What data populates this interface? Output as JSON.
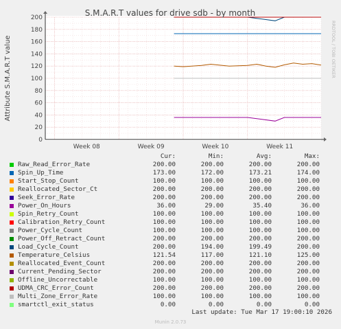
{
  "chart_data": {
    "type": "line",
    "title": "S.M.A.R.T values for drive sdb - by month",
    "ylabel": "Attribute S.M.A.R.T value",
    "side_label": "RRDTOOL / TOBI OETIKER",
    "ylim": [
      0,
      200
    ],
    "yticks": [
      0,
      20,
      40,
      60,
      80,
      100,
      120,
      140,
      160,
      180,
      200
    ],
    "x_range": [
      "2026-02-15",
      "2026-03-17"
    ],
    "x_ticks": [
      {
        "label": "Week 08",
        "date": "2026-02-16"
      },
      {
        "label": "Week 09",
        "date": "2026-02-23"
      },
      {
        "label": "Week 10",
        "date": "2026-03-02"
      },
      {
        "label": "Week 11",
        "date": "2026-03-09"
      }
    ],
    "series": [
      {
        "name": "Raw_Read_Error_Rate",
        "color": "#00cc00",
        "cur": "200.00",
        "min": "200.00",
        "avg": "200.00",
        "max": "200.00",
        "points": [
          [
            "2026-03-01",
            200
          ],
          [
            "2026-03-04",
            200
          ],
          [
            "2026-03-09",
            200
          ],
          [
            "2026-03-17",
            200
          ]
        ]
      },
      {
        "name": "Spin_Up_Time",
        "color": "#0066b3",
        "cur": "173.00",
        "min": "172.00",
        "avg": "173.21",
        "max": "174.00",
        "points": [
          [
            "2026-03-01",
            173
          ],
          [
            "2026-03-04",
            173
          ],
          [
            "2026-03-09",
            173
          ],
          [
            "2026-03-17",
            173
          ]
        ]
      },
      {
        "name": "Start_Stop_Count",
        "color": "#ff8000",
        "cur": "100.00",
        "min": "100.00",
        "avg": "100.00",
        "max": "100.00",
        "points": [
          [
            "2026-03-01",
            100
          ],
          [
            "2026-03-04",
            100
          ],
          [
            "2026-03-09",
            100
          ],
          [
            "2026-03-17",
            100
          ]
        ]
      },
      {
        "name": "Reallocated_Sector_Ct",
        "color": "#ffcc00",
        "cur": "200.00",
        "min": "200.00",
        "avg": "200.00",
        "max": "200.00",
        "points": [
          [
            "2026-03-01",
            200
          ],
          [
            "2026-03-04",
            200
          ],
          [
            "2026-03-09",
            200
          ],
          [
            "2026-03-17",
            200
          ]
        ]
      },
      {
        "name": "Seek_Error_Rate",
        "color": "#330099",
        "cur": "200.00",
        "min": "200.00",
        "avg": "200.00",
        "max": "200.00",
        "points": [
          [
            "2026-03-01",
            200
          ],
          [
            "2026-03-04",
            200
          ],
          [
            "2026-03-09",
            200
          ],
          [
            "2026-03-17",
            200
          ]
        ]
      },
      {
        "name": "Power_On_Hours",
        "color": "#990099",
        "cur": "36.00",
        "min": "29.00",
        "avg": "35.40",
        "max": "36.00",
        "points": [
          [
            "2026-03-01",
            36
          ],
          [
            "2026-03-04",
            36
          ],
          [
            "2026-03-09",
            36
          ],
          [
            "2026-03-12",
            30
          ],
          [
            "2026-03-13",
            36
          ],
          [
            "2026-03-17",
            36
          ]
        ]
      },
      {
        "name": "Spin_Retry_Count",
        "color": "#ccff00",
        "cur": "100.00",
        "min": "100.00",
        "avg": "100.00",
        "max": "100.00",
        "points": [
          [
            "2026-03-01",
            100
          ],
          [
            "2026-03-04",
            100
          ],
          [
            "2026-03-09",
            100
          ],
          [
            "2026-03-17",
            100
          ]
        ]
      },
      {
        "name": "Calibration_Retry_Count",
        "color": "#ff0000",
        "cur": "100.00",
        "min": "100.00",
        "avg": "100.00",
        "max": "100.00",
        "points": [
          [
            "2026-03-01",
            100
          ],
          [
            "2026-03-04",
            100
          ],
          [
            "2026-03-09",
            100
          ],
          [
            "2026-03-17",
            100
          ]
        ]
      },
      {
        "name": "Power_Cycle_Count",
        "color": "#808080",
        "cur": "100.00",
        "min": "100.00",
        "avg": "100.00",
        "max": "100.00",
        "points": [
          [
            "2026-03-01",
            100
          ],
          [
            "2026-03-04",
            100
          ],
          [
            "2026-03-09",
            100
          ],
          [
            "2026-03-17",
            100
          ]
        ]
      },
      {
        "name": "Power_Off_Retract_Count",
        "color": "#008f00",
        "cur": "200.00",
        "min": "200.00",
        "avg": "200.00",
        "max": "200.00",
        "points": [
          [
            "2026-03-01",
            200
          ],
          [
            "2026-03-04",
            200
          ],
          [
            "2026-03-09",
            200
          ],
          [
            "2026-03-17",
            200
          ]
        ]
      },
      {
        "name": "Load_Cycle_Count",
        "color": "#00487d",
        "cur": "200.00",
        "min": "194.00",
        "avg": "199.49",
        "max": "200.00",
        "points": [
          [
            "2026-03-01",
            200
          ],
          [
            "2026-03-04",
            200
          ],
          [
            "2026-03-09",
            200
          ],
          [
            "2026-03-12",
            194
          ],
          [
            "2026-03-13",
            200
          ],
          [
            "2026-03-17",
            200
          ]
        ]
      },
      {
        "name": "Temperature_Celsius",
        "color": "#b35a00",
        "cur": "121.54",
        "min": "117.00",
        "avg": "121.10",
        "max": "125.00",
        "points": [
          [
            "2026-03-01",
            120
          ],
          [
            "2026-03-02",
            119
          ],
          [
            "2026-03-04",
            121
          ],
          [
            "2026-03-05",
            123
          ],
          [
            "2026-03-07",
            120
          ],
          [
            "2026-03-09",
            121
          ],
          [
            "2026-03-10",
            123
          ],
          [
            "2026-03-11",
            120
          ],
          [
            "2026-03-12",
            118
          ],
          [
            "2026-03-13",
            122
          ],
          [
            "2026-03-14",
            125
          ],
          [
            "2026-03-15",
            123
          ],
          [
            "2026-03-16",
            124
          ],
          [
            "2026-03-17",
            121.54
          ]
        ]
      },
      {
        "name": "Reallocated_Event_Count",
        "color": "#b38f00",
        "cur": "200.00",
        "min": "200.00",
        "avg": "200.00",
        "max": "200.00",
        "points": [
          [
            "2026-03-01",
            200
          ],
          [
            "2026-03-04",
            200
          ],
          [
            "2026-03-09",
            200
          ],
          [
            "2026-03-17",
            200
          ]
        ]
      },
      {
        "name": "Current_Pending_Sector",
        "color": "#6b006b",
        "cur": "200.00",
        "min": "200.00",
        "avg": "200.00",
        "max": "200.00",
        "points": [
          [
            "2026-03-01",
            200
          ],
          [
            "2026-03-04",
            200
          ],
          [
            "2026-03-09",
            200
          ],
          [
            "2026-03-17",
            200
          ]
        ]
      },
      {
        "name": "Offline_Uncorrectable",
        "color": "#8fb300",
        "cur": "100.00",
        "min": "100.00",
        "avg": "100.00",
        "max": "100.00",
        "points": [
          [
            "2026-03-01",
            100
          ],
          [
            "2026-03-04",
            100
          ],
          [
            "2026-03-09",
            100
          ],
          [
            "2026-03-17",
            100
          ]
        ]
      },
      {
        "name": "UDMA_CRC_Error_Count",
        "color": "#b30000",
        "cur": "200.00",
        "min": "200.00",
        "avg": "200.00",
        "max": "200.00",
        "points": [
          [
            "2026-03-01",
            200
          ],
          [
            "2026-03-04",
            200
          ],
          [
            "2026-03-09",
            200
          ],
          [
            "2026-03-17",
            200
          ]
        ]
      },
      {
        "name": "Multi_Zone_Error_Rate",
        "color": "#bebebe",
        "cur": "100.00",
        "min": "100.00",
        "avg": "100.00",
        "max": "100.00",
        "points": [
          [
            "2026-03-01",
            100
          ],
          [
            "2026-03-04",
            100
          ],
          [
            "2026-03-09",
            100
          ],
          [
            "2026-03-17",
            100
          ]
        ]
      },
      {
        "name": "smartctl_exit_status",
        "color": "#80ff80",
        "cur": "0.00",
        "min": "0.00",
        "avg": "0.00",
        "max": "0.00",
        "points": [
          [
            "2026-02-15",
            0
          ],
          [
            "2026-03-17",
            0
          ]
        ]
      }
    ]
  },
  "legend": {
    "cur_label": "Cur:",
    "min_label": "Min:",
    "avg_label": "Avg:",
    "max_label": "Max:"
  },
  "last_update": "Last update: Tue Mar 17 19:00:10 2026",
  "footer": "Munin 2.0.73"
}
